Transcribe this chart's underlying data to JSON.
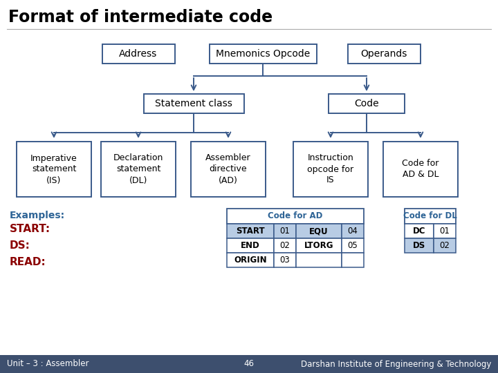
{
  "title": "Format of intermediate code",
  "bg_color": "#ffffff",
  "title_color": "#000000",
  "box_edge_color": "#3a5a8a",
  "arrow_color": "#3a5a8a",
  "top_boxes": [
    "Address",
    "Mnemonics Opcode",
    "Operands"
  ],
  "mid_boxes": [
    "Statement class",
    "Code"
  ],
  "bottom_boxes": [
    "Imperative\nstatement\n(IS)",
    "Declaration\nstatement\n(DL)",
    "Assembler\ndirective\n(AD)",
    "Instruction\nopcode for\nIS",
    "Code for\nAD & DL"
  ],
  "examples_label": "Examples:",
  "examples_color": "#2e6496",
  "examples": [
    "START:",
    "DS:",
    "READ:"
  ],
  "examples_text_color": "#8b0000",
  "table_ad_title": "Code for AD",
  "table_ad_title_color": "#2e6496",
  "table_ad_rows": [
    [
      "START",
      "01",
      "EQU",
      "04"
    ],
    [
      "END",
      "02",
      "LTORG",
      "05"
    ],
    [
      "ORIGIN",
      "03",
      "",
      ""
    ]
  ],
  "table_ad_highlight_row": 0,
  "table_dl_title": "Code for DL",
  "table_dl_title_color": "#2e6496",
  "table_dl_rows": [
    [
      "DC",
      "01"
    ],
    [
      "DS",
      "02"
    ]
  ],
  "table_dl_highlight_row": 1,
  "footer_left": "Unit – 3 : Assembler",
  "footer_center": "46",
  "footer_right": "Darshan Institute of Engineering & Technology",
  "footer_bg": "#3d4f6e",
  "footer_text_color": "#ffffff",
  "highlight_color": "#b8cce4"
}
